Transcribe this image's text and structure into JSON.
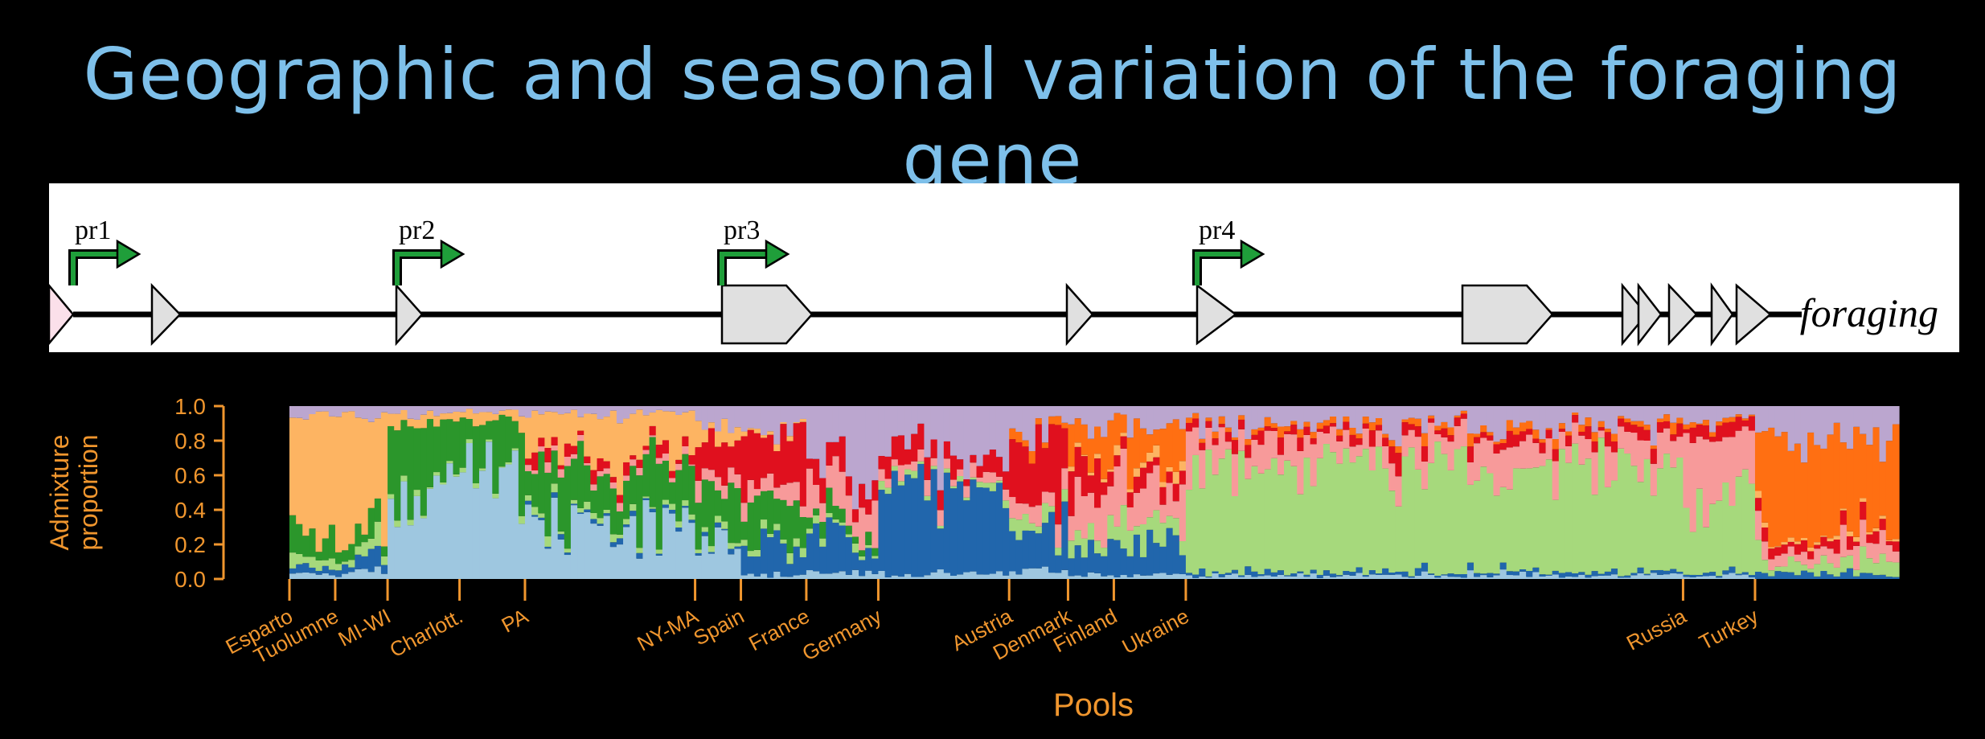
{
  "slide": {
    "title": "Geographic and seasonal variation of the foraging gene"
  },
  "gene_diagram": {
    "gene_name": "foraging",
    "promoters": [
      {
        "label": "pr1"
      },
      {
        "label": "pr2"
      },
      {
        "label": "pr3"
      },
      {
        "label": "pr4"
      }
    ],
    "arrow_color": "#1f9e3a",
    "exon_fill": "#e0e0e0",
    "first_exon_fill": "#fbe0ea"
  },
  "chart_data": {
    "type": "bar",
    "stacked": true,
    "ylabel": "Admixture proportion",
    "xlabel": "Pools",
    "ylim": [
      0,
      1
    ],
    "yticks": [
      "0.0",
      "0.2",
      "0.4",
      "0.6",
      "0.8",
      "1.0"
    ],
    "components": [
      {
        "color": "#9ec7e0"
      },
      {
        "color": "#2166ac"
      },
      {
        "color": "#a6d97c"
      },
      {
        "color": "#2b962b"
      },
      {
        "color": "#f79a9a"
      },
      {
        "color": "#e0101e"
      },
      {
        "color": "#fdb462"
      },
      {
        "color": "#ff6f12"
      },
      {
        "color": "#bba6cf"
      }
    ],
    "groups": [
      {
        "label": "Esparto",
        "n": 7,
        "p": [
          0.02,
          0.03,
          0.06,
          0.1,
          0.0,
          0.0,
          0.75,
          0.0,
          0.04
        ]
      },
      {
        "label": "Tuolumne",
        "n": 8,
        "p": [
          0.03,
          0.05,
          0.05,
          0.07,
          0.0,
          0.0,
          0.76,
          0.0,
          0.04
        ]
      },
      {
        "label": "MI-WI",
        "n": 11,
        "p": [
          0.52,
          0.0,
          0.02,
          0.36,
          0.0,
          0.0,
          0.06,
          0.0,
          0.04
        ]
      },
      {
        "label": "Charlott.",
        "n": 10,
        "p": [
          0.65,
          0.0,
          0.02,
          0.25,
          0.0,
          0.0,
          0.05,
          0.0,
          0.03
        ]
      },
      {
        "label": "PA",
        "n": 26,
        "p": [
          0.3,
          0.02,
          0.03,
          0.3,
          0.03,
          0.05,
          0.22,
          0.0,
          0.05
        ]
      },
      {
        "label": "NY-MA",
        "n": 7,
        "p": [
          0.2,
          0.02,
          0.03,
          0.28,
          0.07,
          0.2,
          0.1,
          0.0,
          0.1
        ]
      },
      {
        "label": "Spain",
        "n": 10,
        "p": [
          0.02,
          0.2,
          0.04,
          0.22,
          0.1,
          0.28,
          0.02,
          0.0,
          0.12
        ]
      },
      {
        "label": "France",
        "n": 11,
        "p": [
          0.04,
          0.2,
          0.04,
          0.06,
          0.18,
          0.12,
          0.0,
          0.0,
          0.36
        ]
      },
      {
        "label": "Germany",
        "n": 20,
        "p": [
          0.03,
          0.5,
          0.03,
          0.0,
          0.06,
          0.1,
          0.0,
          0.0,
          0.28
        ]
      },
      {
        "label": "Austria",
        "n": 9,
        "p": [
          0.04,
          0.22,
          0.08,
          0.0,
          0.08,
          0.42,
          0.0,
          0.04,
          0.12
        ]
      },
      {
        "label": "Denmark",
        "n": 7,
        "p": [
          0.03,
          0.14,
          0.1,
          0.0,
          0.22,
          0.18,
          0.02,
          0.18,
          0.13
        ]
      },
      {
        "label": "Finland",
        "n": 11,
        "p": [
          0.02,
          0.2,
          0.14,
          0.0,
          0.22,
          0.06,
          0.04,
          0.22,
          0.1
        ]
      },
      {
        "label": "Ukraine",
        "n": 76,
        "p": [
          0.02,
          0.02,
          0.64,
          0.0,
          0.14,
          0.05,
          0.0,
          0.03,
          0.1
        ]
      },
      {
        "label": "Russia",
        "n": 11,
        "p": [
          0.02,
          0.02,
          0.48,
          0.0,
          0.3,
          0.06,
          0.0,
          0.02,
          0.1
        ]
      },
      {
        "label": "Turkey",
        "n": 22,
        "p": [
          0.0,
          0.04,
          0.08,
          0.0,
          0.08,
          0.05,
          0.02,
          0.55,
          0.18
        ]
      }
    ]
  }
}
